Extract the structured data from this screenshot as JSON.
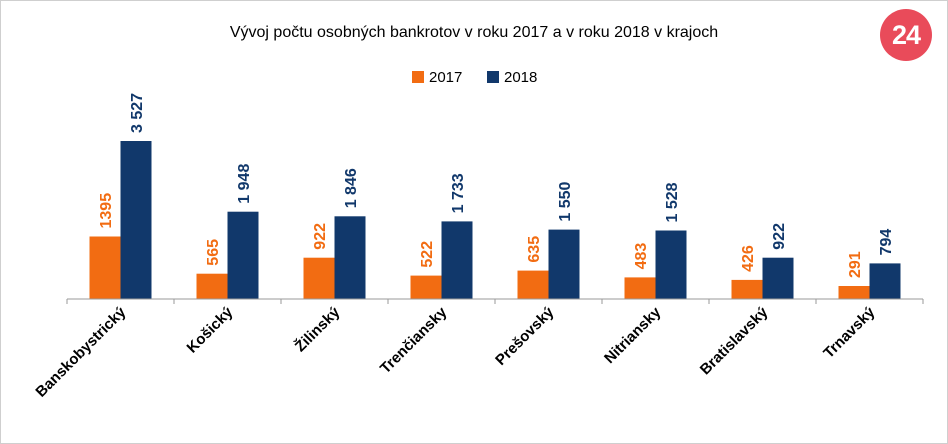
{
  "logo": {
    "text": "24"
  },
  "colors": {
    "s2017": "#f26c12",
    "s2018": "#11386b",
    "axis": "#9a9a9a",
    "text": "#000000"
  },
  "chart_data": {
    "type": "bar",
    "title": "Vývoj počtu osobných bankrotov v roku 2017 a v roku 2018 v krajoch",
    "legend_position": "top-center",
    "grid": false,
    "xlabel": "",
    "ylabel": "",
    "ylim": [
      0,
      3527
    ],
    "categories": [
      "Banskobystrický",
      "Košický",
      "Žilinský",
      "Trenčiansky",
      "Prešovský",
      "Nitriansky",
      "Bratislavský",
      "Trnavský"
    ],
    "series": [
      {
        "name": "2017",
        "values": [
          1395,
          565,
          922,
          522,
          635,
          483,
          426,
          291
        ],
        "labels": [
          "1395",
          "565",
          "922",
          "522",
          "635",
          "483",
          "426",
          "291"
        ]
      },
      {
        "name": "2018",
        "values": [
          3527,
          1948,
          1846,
          1733,
          1550,
          1528,
          922,
          794
        ],
        "labels": [
          "3 527",
          "1 948",
          "1 846",
          "1 733",
          "1 550",
          "1 528",
          "922",
          "794"
        ]
      }
    ]
  }
}
